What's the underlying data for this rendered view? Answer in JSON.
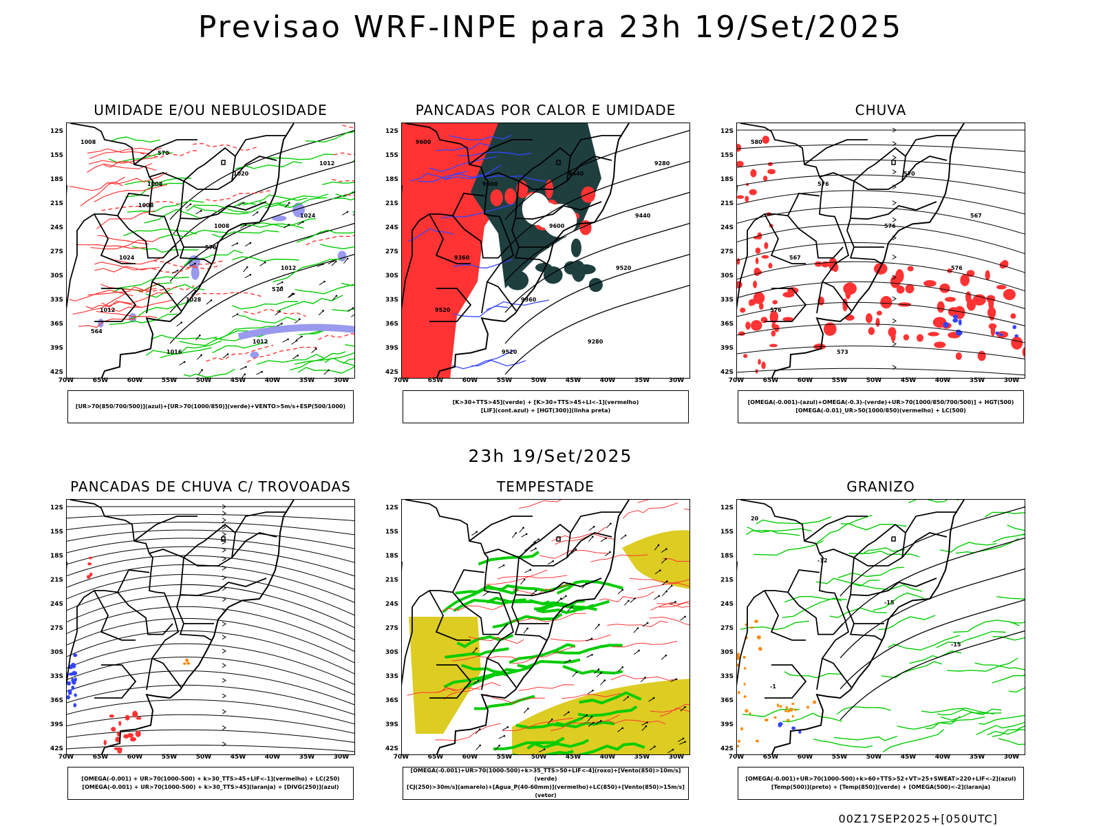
{
  "main_title": "Previsao WRF-INPE  para 23h 19/Set/2025",
  "mid_title": "23h 19/Set/2025",
  "footer": "00Z17SEP2025+[050UTC]",
  "lat_ticks": [
    "12S",
    "15S",
    "18S",
    "21S",
    "24S",
    "27S",
    "30S",
    "33S",
    "36S",
    "39S",
    "42S"
  ],
  "lon_ticks": [
    "70W",
    "65W",
    "60W",
    "55W",
    "50W",
    "45W",
    "40W",
    "35W",
    "30W"
  ],
  "panels": [
    {
      "title": "UMIDADE E/OU NEBULOSIDADE",
      "legend": [
        "[UR>70(850/700/500)](azul)+[UR>70(1000/850)](verde)+VENTO>5m/s+ESP(500/1000)"
      ],
      "contour_labels": [
        "1008",
        "1008",
        "1008",
        "1012",
        "1012",
        "1016",
        "1020",
        "1024",
        "1024",
        "1028",
        "1012",
        "1012",
        "1008",
        "576",
        "570",
        "564",
        "570"
      ]
    },
    {
      "title": "PANCADAS POR CALOR E UMIDADE",
      "legend": [
        "[K>30+TTS>45](verde) + [K>30+TTS>45+LI<-1](vermelho)",
        "[LIF](cont.azul) + [HGT(300)](linha preta)"
      ],
      "contour_labels": [
        "9600",
        "9600",
        "9600",
        "9520",
        "9520",
        "9520",
        "9440",
        "9440",
        "9360",
        "9360",
        "9280",
        "9280"
      ]
    },
    {
      "title": "CHUVA",
      "legend": [
        "[OMEGA(-0.001)-(azul)+OMEGA(-0.3)-(verde)+UR>70(1000/850/700/500)] + HGT(500)",
        "[OMEGA(-0.01)_UR>50(1000/850)(vermelho) + LC(500)"
      ],
      "contour_labels": [
        "580",
        "576",
        "576",
        "576",
        "576",
        "573",
        "570",
        "567",
        "567"
      ]
    },
    {
      "title": "PANCADAS DE CHUVA C/ TROVOADAS",
      "legend": [
        "[OMEGA(-0.001) + UR>70(1000-500) + k>30_TTS>45+LIF<-1](vermelho) + LC(250)",
        "[OMEGA(-0.001) + UR>70(1000-500) + k>30_TTS>45](laranja) + [DIVG(250)](azul)"
      ],
      "contour_labels": []
    },
    {
      "title": "TEMPESTADE",
      "legend": [
        "[OMEGA(-0.001)+UR>70(1000-500)+k>35_TTS>50+LIF<-4](roxo)+[Vento(850)>10m/s](verde)",
        "[CJ(250)>30m/s](amarelo)+[Agua_P(40-60mm)](vermelho)+LC(850)+[Vento(850)>15m/s](vetor)"
      ],
      "contour_labels": []
    },
    {
      "title": "GRANIZO",
      "legend": [
        "[OMEGA(-0.001)+UR>70(1000-500)+k>60+TTS>52+VT>25+SWEAT>220+LIF<-2](azul)",
        "[Temp(500)](preto) + [Temp(850)](verde) + [OMEGA(500)<-2](laranja)"
      ],
      "contour_labels": [
        "20",
        "-12",
        "-15",
        "-15",
        "-1"
      ]
    }
  ],
  "colors": {
    "coast": "#000000",
    "green": "#00cc00",
    "red": "#ff3333",
    "blue": "#3344ff",
    "lavender": "#9999ee",
    "darkgreen": "#1f3f3f",
    "yellow": "#ddcc22",
    "orange": "#ff8800"
  }
}
